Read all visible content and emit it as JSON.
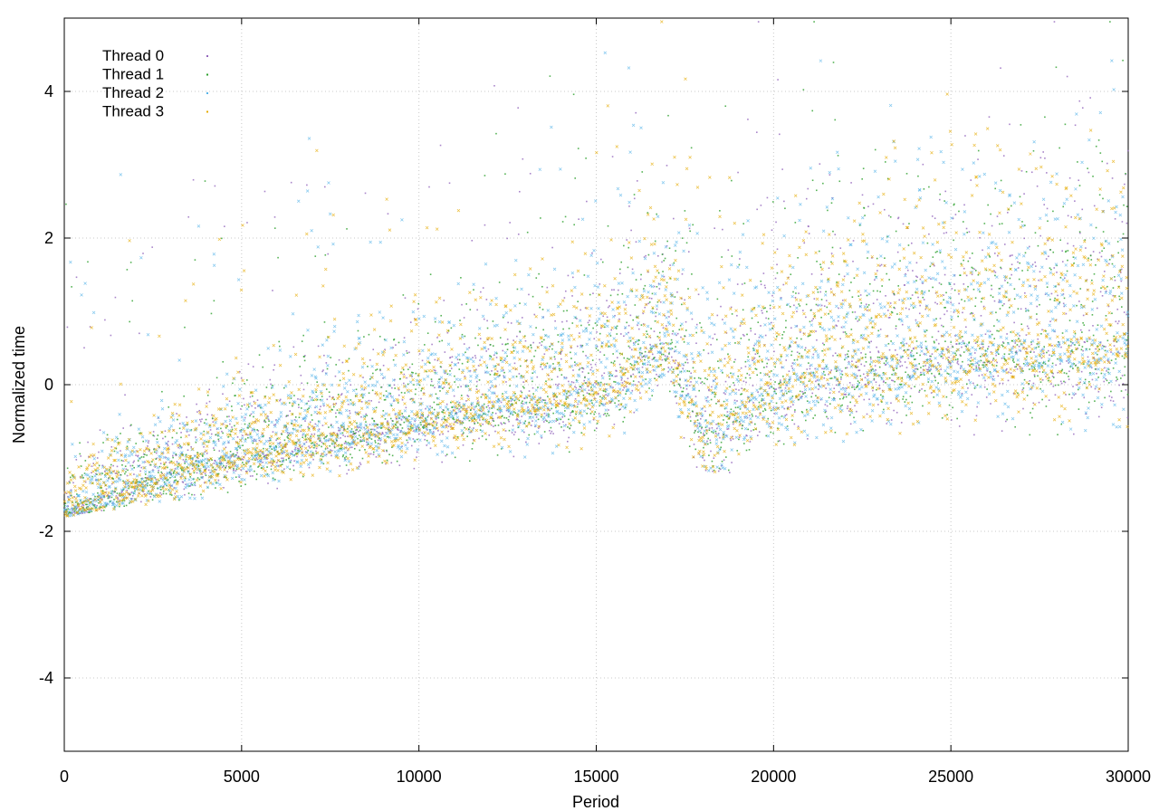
{
  "chart_data": {
    "type": "scatter",
    "title": "",
    "xlabel": "Period",
    "ylabel": "Normalized time",
    "xlim": [
      0,
      30000
    ],
    "ylim": [
      -5,
      5
    ],
    "xticks": [
      0,
      5000,
      10000,
      15000,
      20000,
      25000,
      30000
    ],
    "yticks": [
      -4,
      -2,
      0,
      2,
      4
    ],
    "xtick_labels": [
      "0",
      "5000",
      "10000",
      "15000",
      "20000",
      "25000",
      "30000"
    ],
    "ytick_labels": [
      "-4",
      "-2",
      "0",
      "2",
      "4"
    ],
    "grid": true,
    "legend_position": "top-left",
    "series": [
      {
        "name": "Thread 0",
        "color": "#9467bd",
        "marker": "dot"
      },
      {
        "name": "Thread 1",
        "color": "#2ca02c",
        "marker": "dot"
      },
      {
        "name": "Thread 2",
        "color": "#56b4e9",
        "marker": "cross"
      },
      {
        "name": "Thread 3",
        "color": "#e6ab02",
        "marker": "cross"
      }
    ],
    "trend_description_values": {
      "x": [
        0,
        2000,
        5000,
        8000,
        10000,
        12000,
        14000,
        16000,
        17000,
        18000,
        20000,
        22000,
        24000,
        26000,
        28000,
        30000
      ],
      "center": [
        -1.7,
        -1.3,
        -0.9,
        -0.6,
        -0.4,
        -0.2,
        -0.1,
        0.3,
        0.8,
        -0.6,
        0.1,
        0.3,
        0.5,
        0.6,
        0.6,
        0.7
      ],
      "lower_bound": [
        -1.8,
        -1.65,
        -1.5,
        -1.4,
        -1.35,
        -1.3,
        -1.2,
        -1.05,
        -1.0,
        -1.2,
        -1.2,
        -1.05,
        -0.85,
        -0.75,
        -0.7,
        -0.6
      ]
    },
    "points_per_series": 2200
  }
}
